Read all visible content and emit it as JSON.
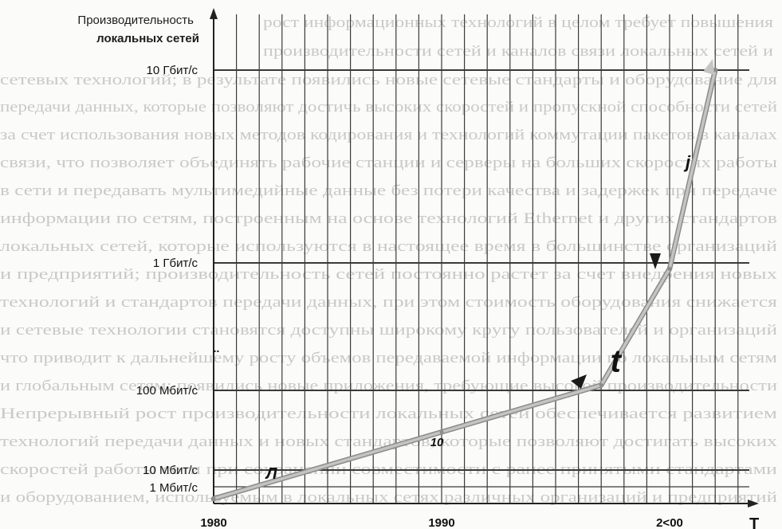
{
  "chart_data": {
    "type": "line",
    "title": "",
    "ylabel_lines": [
      "Производительность",
      "локальных сетей"
    ],
    "xlabel": "T",
    "y_scale": "log",
    "y_ticks": [
      {
        "label": "10 Гбит/с",
        "value": 10000
      },
      {
        "label": "1 Гбит/с",
        "value": 1000
      },
      {
        "label": "100 Мбит/с",
        "value": 100
      },
      {
        "label": "10 Мбит/с",
        "value": 10
      },
      {
        "label": "1 Мбит/с",
        "value": 1
      }
    ],
    "x_ticks": [
      {
        "label": "1980",
        "value": 1980
      },
      {
        "label": "1990",
        "value": 1990
      },
      {
        "label": "2<00",
        "value": 2000
      }
    ],
    "series": [
      {
        "points": [
          {
            "x": 1980,
            "y": 0.35
          },
          {
            "x": 1990,
            "y": 30
          },
          {
            "x": 1997,
            "y": 110
          },
          {
            "x": 2000,
            "y": 900
          },
          {
            "x": 2002,
            "y": 10000
          }
        ]
      }
    ],
    "annotations": [
      {
        "text": "Л",
        "x": 1982.3,
        "y": 3.2
      },
      {
        "text": "10",
        "x": 1989.5,
        "y": 20
      },
      {
        "text": "t",
        "x": 1997.4,
        "y": 140
      },
      {
        "text": "j",
        "x": 2000.7,
        "y": 3100
      },
      {
        "text": "..",
        "x": 1980,
        "y": 200
      }
    ],
    "grid": true,
    "colors": {
      "line": "#c4c4c4",
      "line_edge": "#8c8c8c",
      "grid": "#3a3a3a",
      "text": "#111111"
    }
  }
}
